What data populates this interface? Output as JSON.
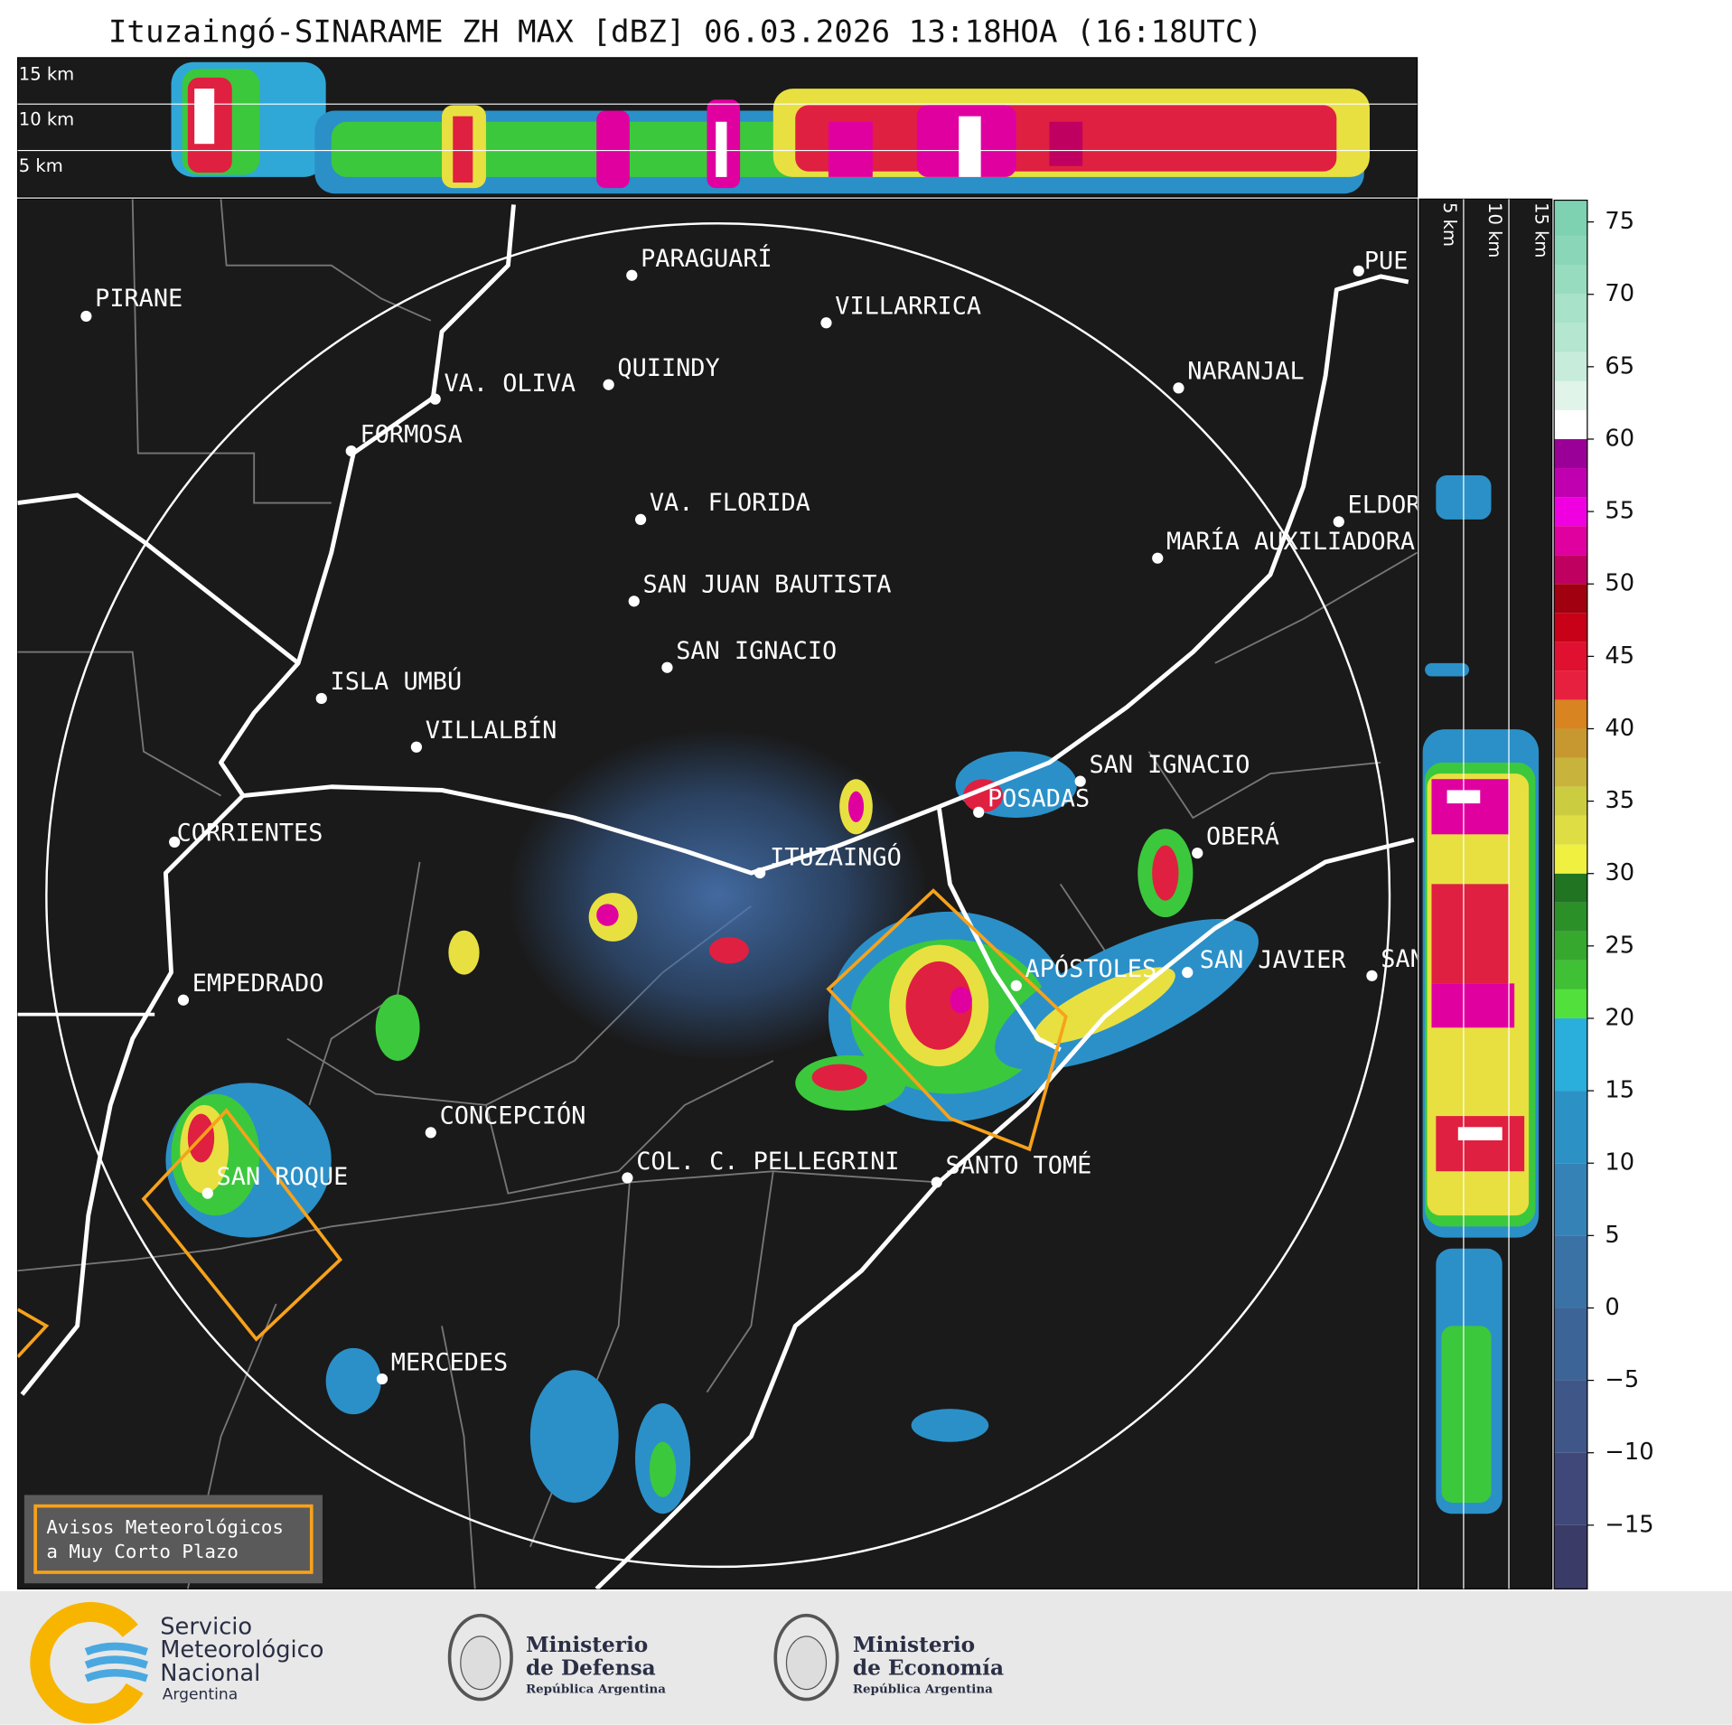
{
  "title": "Ituzaingó-SINARAME ZH MAX [dBZ] 06.03.2026 13:18HOA (16:18UTC)",
  "top_section": {
    "height_labels": [
      "15 km",
      "10 km",
      "5 km"
    ]
  },
  "side_section": {
    "height_labels": [
      "5 km",
      "10 km",
      "15 km"
    ]
  },
  "cities": [
    "PIRANE",
    "PARAGUARÍ",
    "VILLARRICA",
    "VA. OLIVA",
    "QUIINDY",
    "FORMOSA",
    "NARANJAL",
    "VA. FLORIDA",
    "MARÍA AUXILIADORA",
    "ELDORADO",
    "SAN JUAN BAUTISTA",
    "SAN IGNACIO",
    "ISLA UMBÚ",
    "VILLALBÍN",
    "SAN IGNACIO",
    "POSADAS",
    "CORRIENTES",
    "ITUZAINGÓ",
    "OBERÁ",
    "EMPEDRADO",
    "APÓSTOLES",
    "SAN JAVIER",
    "SAN",
    "CONCEPCIÓN",
    "COL. C. PELLEGRINI",
    "SANTO TOMÉ",
    "SAN ROQUE",
    "MERCEDES",
    "PUE"
  ],
  "colorbar": {
    "range": [
      -19.4,
      76.5
    ],
    "ticks": [
      75,
      70,
      65,
      60,
      55,
      50,
      45,
      40,
      35,
      30,
      25,
      20,
      15,
      10,
      5,
      0,
      {
        "value": -5,
        "label": "−5"
      },
      {
        "value": -10,
        "label": "−10"
      },
      {
        "value": -15,
        "label": "−15"
      }
    ]
  },
  "warning_box": {
    "lines": [
      "Avisos Meteorológicos",
      "a Muy Corto Plazo"
    ]
  },
  "logos": {
    "smn": [
      "Servicio",
      "Meteorológico",
      "Nacional",
      "Argentina"
    ],
    "defensa": [
      "Ministerio",
      "de Defensa",
      "República Argentina"
    ],
    "economia": [
      "Ministerio",
      "de Economía",
      "República Argentina"
    ]
  }
}
